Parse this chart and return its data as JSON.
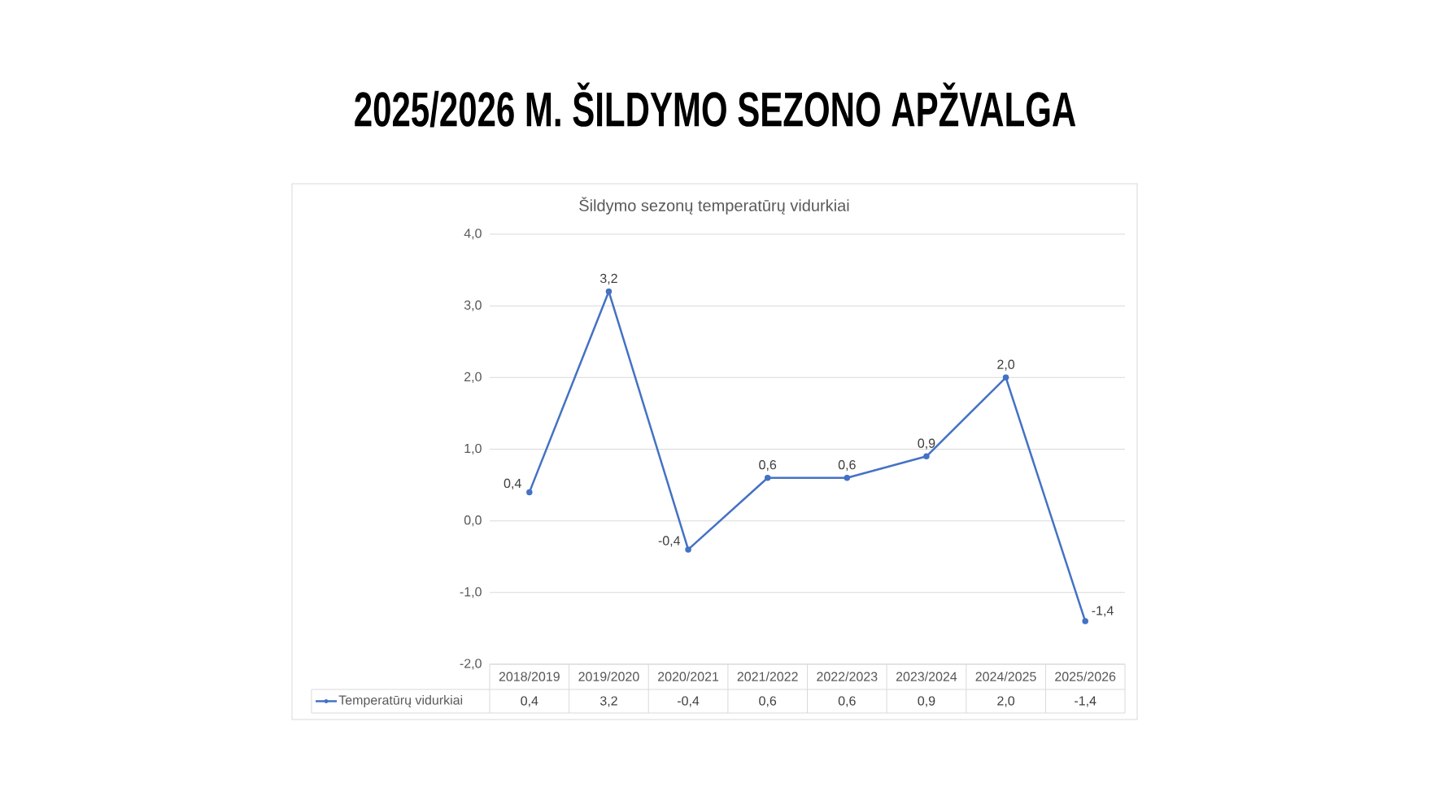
{
  "chart_data": {
    "type": "line",
    "title": "2025/2026 M. ŠILDYMO SEZONO APŽVALGA",
    "subtitle": "Šildymo sezonų temperatūrų vidurkiai",
    "categories": [
      "2018/2019",
      "2019/2020",
      "2020/2021",
      "2021/2022",
      "2022/2023",
      "2023/2024",
      "2024/2025",
      "2025/2026"
    ],
    "series": [
      {
        "name": "Temperatūrų vidurkiai",
        "color": "#4472c4",
        "values": [
          0.4,
          3.2,
          -0.4,
          0.6,
          0.6,
          0.9,
          2.0,
          -1.4
        ],
        "value_labels": [
          "0,4",
          "3,2",
          "-0,4",
          "0,6",
          "0,6",
          "0,9",
          "2,0",
          "-1,4"
        ]
      }
    ],
    "ylim": [
      -2,
      4
    ],
    "yticks": [
      {
        "value": -2,
        "label": "-2,0"
      },
      {
        "value": -1,
        "label": "-1,0"
      },
      {
        "value": 0,
        "label": "0,0"
      },
      {
        "value": 1,
        "label": "1,0"
      },
      {
        "value": 2,
        "label": "2,0"
      },
      {
        "value": 3,
        "label": "3,0"
      },
      {
        "value": 4,
        "label": "4,0"
      }
    ],
    "grid": "y",
    "legend": "bottom",
    "marker": "circle",
    "line_style": "solid"
  }
}
